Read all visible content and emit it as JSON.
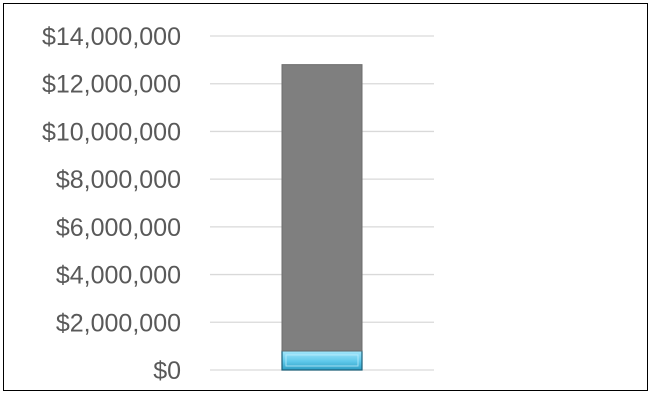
{
  "chart_data": {
    "type": "bar",
    "stacked": true,
    "categories": [
      ""
    ],
    "series": [
      {
        "values": [
          800000
        ],
        "color": "#5ec8ea"
      },
      {
        "values": [
          12000000
        ],
        "color": "#7f7f7f"
      }
    ],
    "ylim": [
      0,
      14000000
    ],
    "yticks": [
      0,
      2000000,
      4000000,
      6000000,
      8000000,
      10000000,
      12000000,
      14000000
    ],
    "ytick_labels": [
      "$0",
      "$2,000,000",
      "$4,000,000",
      "$6,000,000",
      "$8,000,000",
      "$10,000,000",
      "$12,000,000",
      "$14,000,000"
    ],
    "grid": true,
    "legend": "none",
    "title": "",
    "xlabel": "",
    "ylabel": ""
  }
}
